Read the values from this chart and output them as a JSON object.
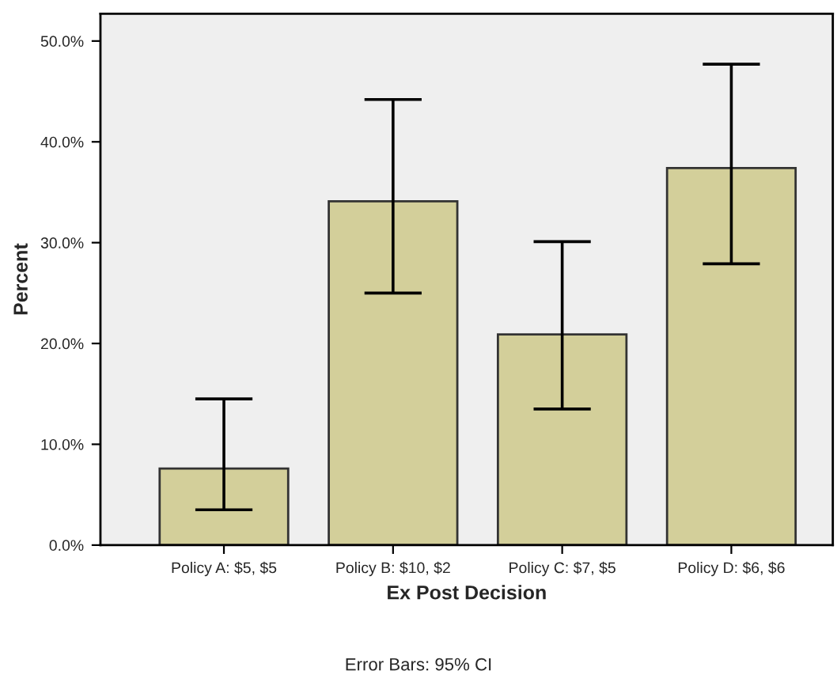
{
  "chart_data": {
    "type": "bar",
    "xlabel": "Ex Post Decision",
    "ylabel": "Percent",
    "categories": [
      "Policy A: $5, $5",
      "Policy B: $10, $2",
      "Policy C: $7, $5",
      "Policy D: $6, $6"
    ],
    "values": [
      7.6,
      34.1,
      20.9,
      37.4
    ],
    "errors": [
      [
        3.5,
        14.5
      ],
      [
        25.0,
        44.2
      ],
      [
        13.5,
        30.1
      ],
      [
        27.9,
        47.7
      ]
    ],
    "color": "#d3cf9a",
    "ylim": [
      0,
      52.7
    ],
    "yticks": [
      {
        "value": 0,
        "label": "0.0%"
      },
      {
        "value": 10,
        "label": "10.0%"
      },
      {
        "value": 20,
        "label": "20.0%"
      },
      {
        "value": 30,
        "label": "30.0%"
      },
      {
        "value": 40,
        "label": "40.0%"
      },
      {
        "value": 50,
        "label": "50.0%"
      }
    ],
    "grid": false,
    "annotations": [
      "Error Bars: 95% CI"
    ]
  }
}
